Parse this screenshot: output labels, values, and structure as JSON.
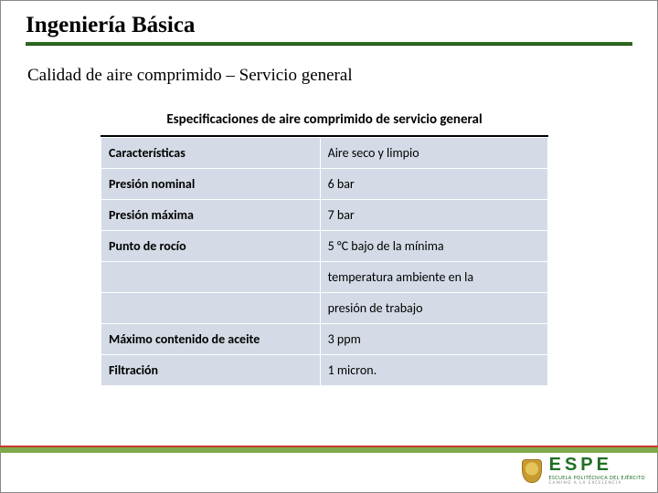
{
  "colors": {
    "title_underline_top": "#2b6d1e",
    "title_underline_bottom": "#1a4412",
    "table_cell_bg": "#d4dbe6",
    "bottom_bar_green": "#7fa94a",
    "bottom_bar_red": "#c7392c",
    "espe_green": "#1f6f26",
    "frame_border": "#8a8a8a"
  },
  "title": "Ingeniería Básica",
  "subtitle": "Calidad de aire comprimido – Servicio general",
  "table": {
    "caption": "Especificaciones de aire comprimido de servicio general",
    "columns": [
      "label",
      "value"
    ],
    "col_widths_pct": [
      49,
      51
    ],
    "cell_bg": "#d4dbe6",
    "cell_border": "#ffffff",
    "label_font_weight": "bold",
    "font_size_pt": 11,
    "rows": [
      {
        "label": "Características",
        "value": "Aire seco y limpio"
      },
      {
        "label": "Presión nominal",
        "value": "6 bar"
      },
      {
        "label": "Presión máxima",
        "value": "7 bar"
      },
      {
        "label": "Punto de rocío",
        "value": "5 °C bajo de la mínima"
      },
      {
        "label": "",
        "value": "temperatura ambiente en la"
      },
      {
        "label": "",
        "value": "presión de trabajo"
      },
      {
        "label": "Máximo contenido de aceite",
        "value": "3 ppm"
      },
      {
        "label": "Filtración",
        "value": "1 micron."
      }
    ]
  },
  "footer": {
    "brand": "ESPE",
    "line1": "ESCUELA POLITÉCNICA DEL EJÉRCITO",
    "line2": "CAMINO A LA EXCELENCIA"
  }
}
